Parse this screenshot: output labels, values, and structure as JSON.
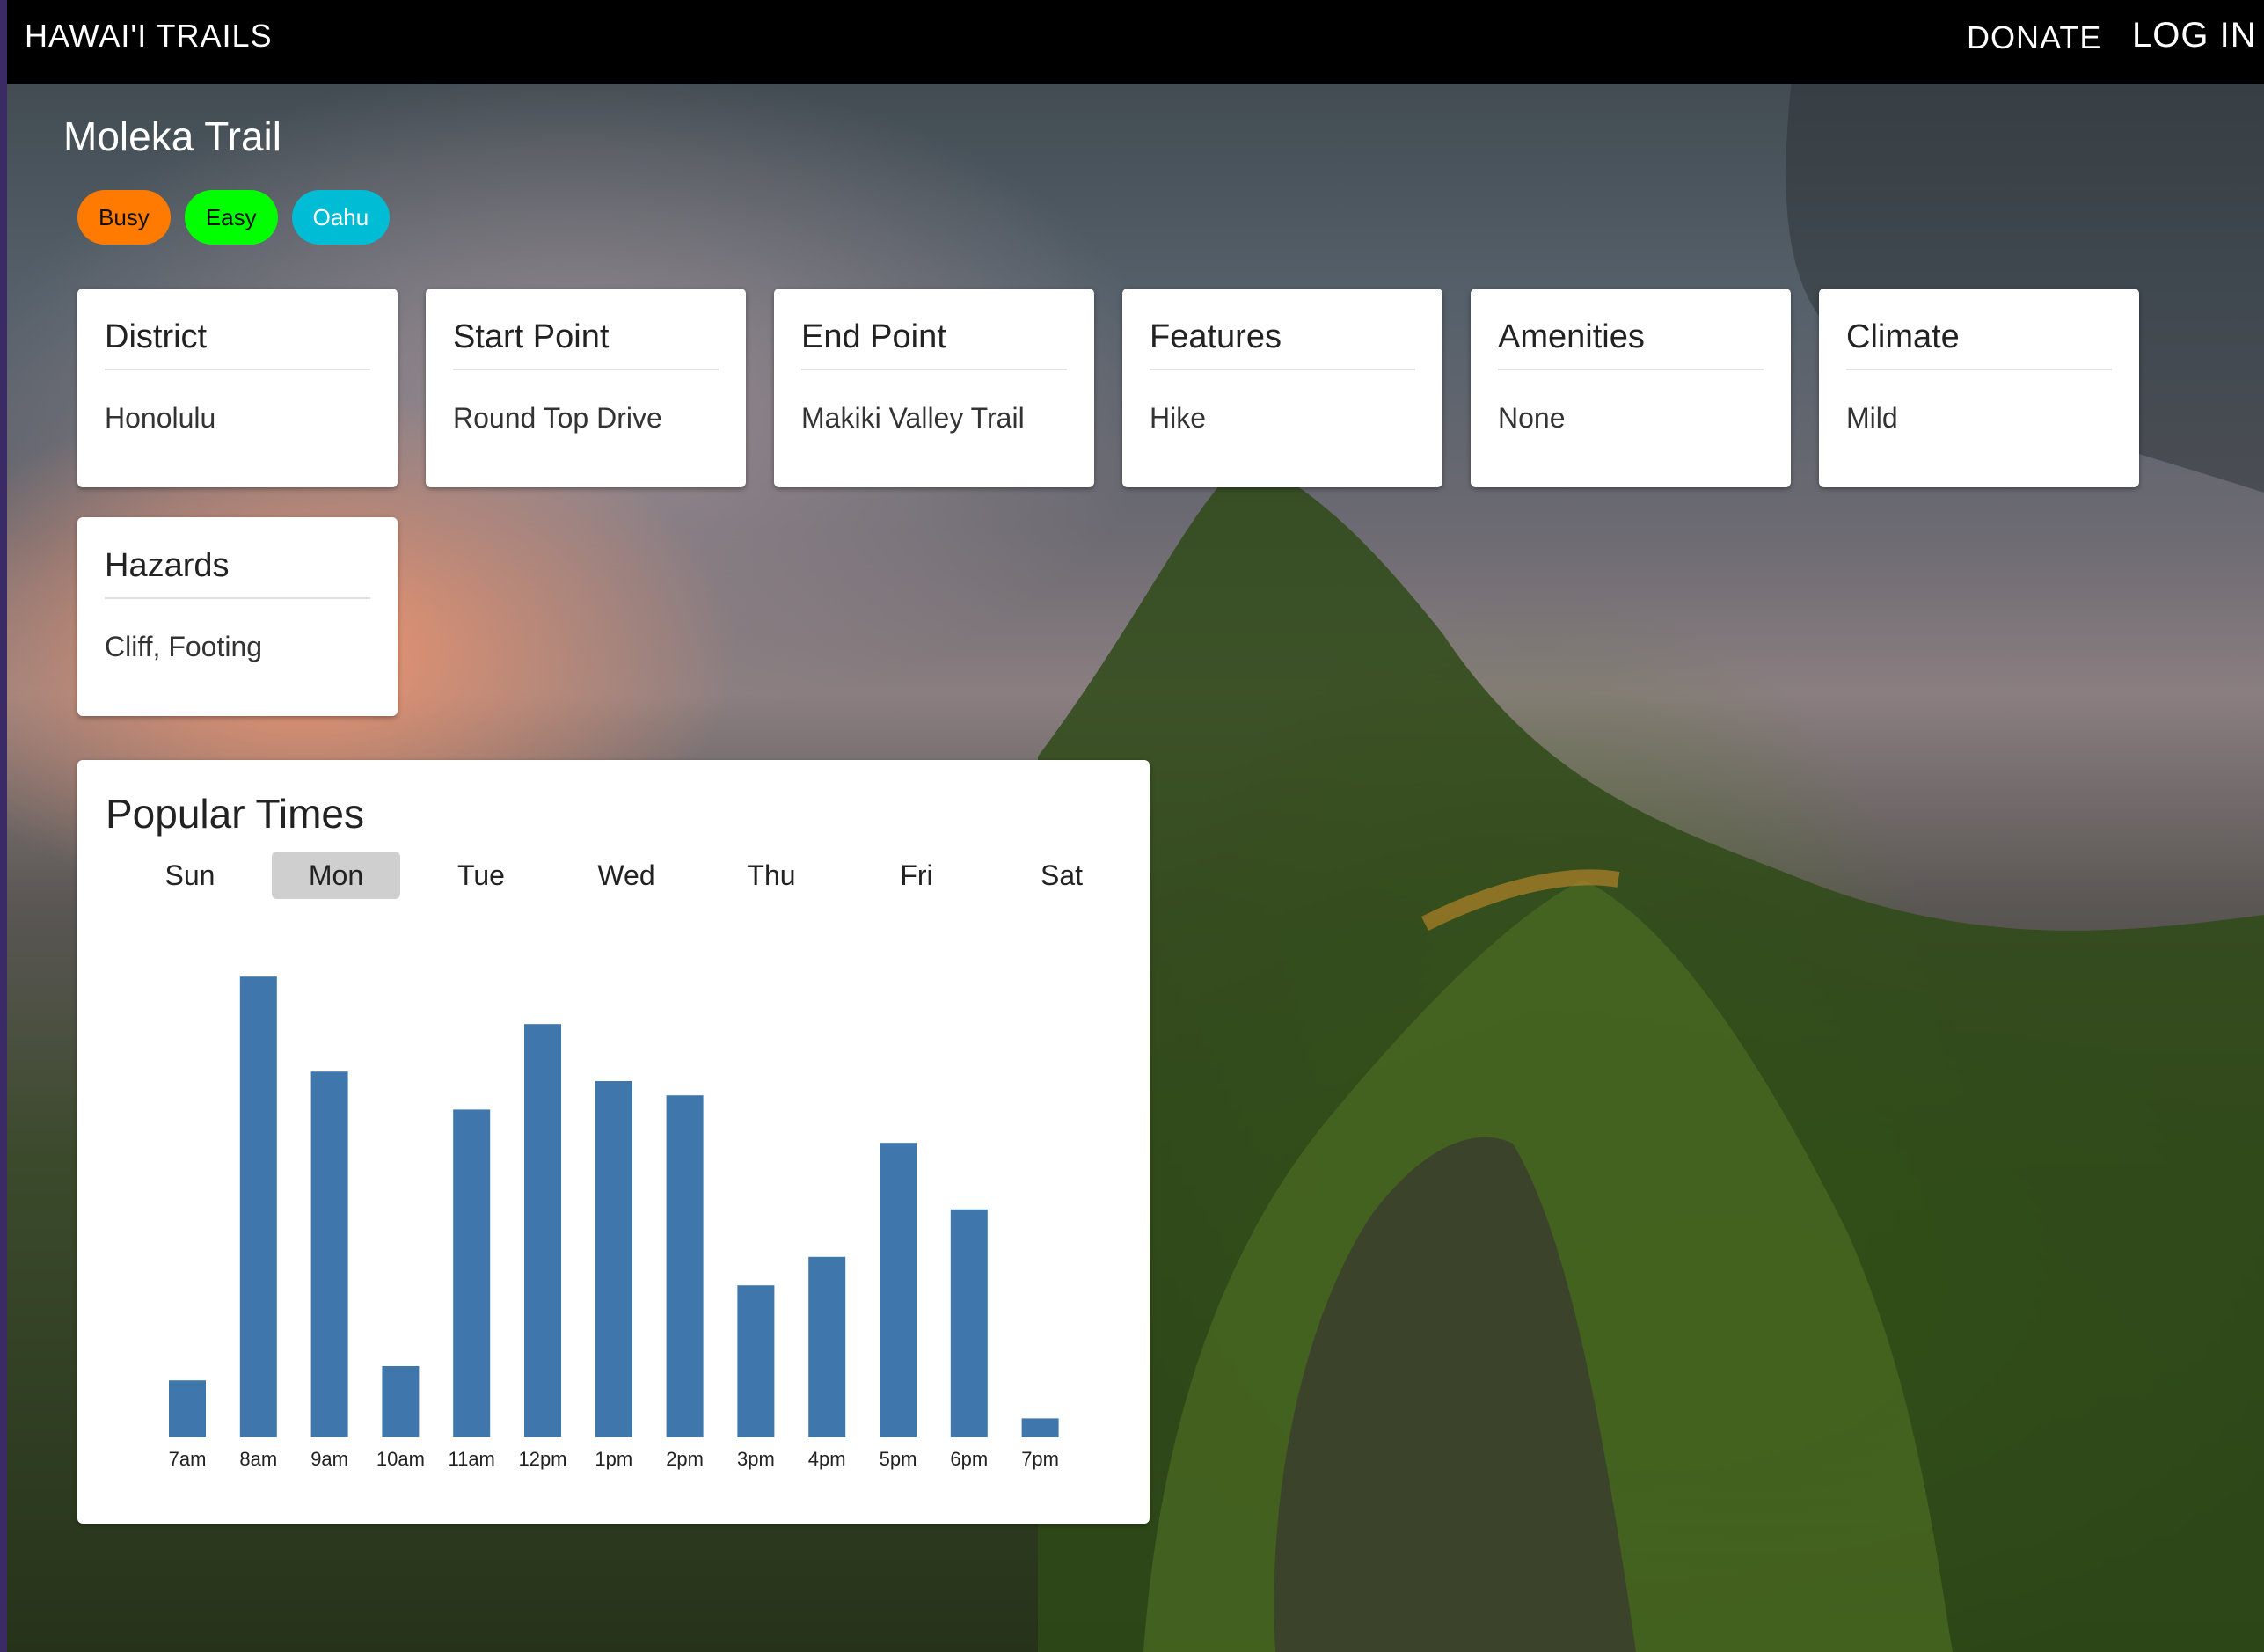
{
  "navbar": {
    "brand": "HAWAI'I TRAILS",
    "donate": "DONATE",
    "login": "LOG IN"
  },
  "trail": {
    "name": "Moleka Trail"
  },
  "tags": [
    {
      "label": "Busy",
      "color": "#ff7a00"
    },
    {
      "label": "Easy",
      "color": "#00ff00"
    },
    {
      "label": "Oahu",
      "color": "#00bcd4"
    }
  ],
  "cards": [
    {
      "title": "District",
      "value": "Honolulu"
    },
    {
      "title": "Start Point",
      "value": "Round Top Drive"
    },
    {
      "title": "End Point",
      "value": "Makiki Valley Trail"
    },
    {
      "title": "Features",
      "value": "Hike"
    },
    {
      "title": "Amenities",
      "value": "None"
    },
    {
      "title": "Climate",
      "value": "Mild"
    },
    {
      "title": "Hazards",
      "value": "Cliff, Footing"
    }
  ],
  "popular_times": {
    "title": "Popular Times",
    "days": [
      "Sun",
      "Mon",
      "Tue",
      "Wed",
      "Thu",
      "Fri",
      "Sat"
    ],
    "selected_day": "Mon"
  },
  "chart_data": {
    "type": "bar",
    "categories": [
      "7am",
      "8am",
      "9am",
      "10am",
      "11am",
      "12pm",
      "1pm",
      "2pm",
      "3pm",
      "4pm",
      "5pm",
      "6pm",
      "7pm"
    ],
    "values": [
      12,
      97,
      77,
      15,
      69,
      87,
      75,
      72,
      32,
      38,
      62,
      48,
      4
    ],
    "ylim": [
      0,
      100
    ],
    "bar_color": "#3f77ad",
    "grid": false
  }
}
